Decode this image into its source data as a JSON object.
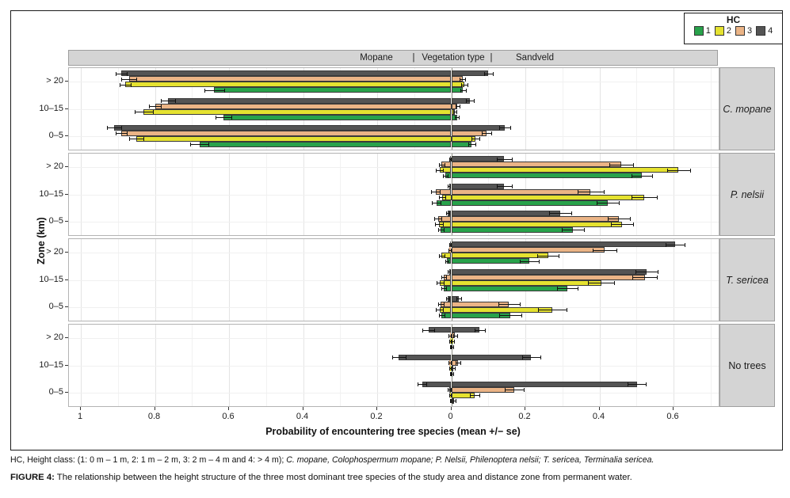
{
  "caption": {
    "line1_regular": "HC, Height class: (1: 0 m – 1 m, 2: 1 m – 2 m, 3: 2 m – 4 m and 4: > 4 m); ",
    "line1_italic": "C. mopane, Colophospermum mopane; P. Nelsii, Philenoptera nelsii; T. sericea, Terminalia sericea.",
    "line2_label": "FIGURE 4:",
    "line2_text": " The relationship between the height structure of the three most dominant tree species of the study area and distance zone from permanent water."
  },
  "chart_data": {
    "type": "bar",
    "orientation": "horizontal-diverging",
    "xlabel": "Probability of encountering  tree species (mean +/− se)",
    "ylabel": "Zone (km)",
    "strip": {
      "left": "Mopane",
      "center": "Vegetation type",
      "right": "Sandveld",
      "separator": "|"
    },
    "legend": {
      "title": "HC"
    },
    "height_classes": [
      {
        "id": "1",
        "color": "#28a24b"
      },
      {
        "id": "2",
        "color": "#e5e230"
      },
      {
        "id": "3",
        "color": "#ebb486"
      },
      {
        "id": "4",
        "color": "#545454"
      }
    ],
    "zones": [
      "> 20",
      "10–15",
      "0–5"
    ],
    "x_ticks": [
      {
        "label": "1",
        "v": 1.0,
        "side": "M"
      },
      {
        "label": "0.8",
        "v": 0.8,
        "side": "M"
      },
      {
        "label": "0.6",
        "v": 0.6,
        "side": "M"
      },
      {
        "label": "0.4",
        "v": 0.4,
        "side": "M"
      },
      {
        "label": "0.2",
        "v": 0.2,
        "side": "M"
      },
      {
        "label": "0",
        "v": 0.0,
        "side": "Z"
      },
      {
        "label": "0.2",
        "v": 0.2,
        "side": "S"
      },
      {
        "label": "0.4",
        "v": 0.4,
        "side": "S"
      },
      {
        "label": "0.6",
        "v": 0.6,
        "side": "S"
      }
    ],
    "xlim": {
      "mopane_max": 1.03,
      "sandveld_max": 0.72
    },
    "panels": [
      {
        "label": "C. mopane",
        "italic": true,
        "groups": [
          {
            "zone": "> 20",
            "bars": [
              {
                "hc": "4",
                "mopane": 0.89,
                "mopane_se": 0.015,
                "sandveld": 0.1,
                "sandveld_se": 0.012
              },
              {
                "hc": "3",
                "mopane": 0.87,
                "mopane_se": 0.02,
                "sandveld": 0.03,
                "sandveld_se": 0.008
              },
              {
                "hc": "2",
                "mopane": 0.88,
                "mopane_se": 0.015,
                "sandveld": 0.035,
                "sandveld_se": 0.008
              },
              {
                "hc": "1",
                "mopane": 0.64,
                "mopane_se": 0.027,
                "sandveld": 0.032,
                "sandveld_se": 0.008
              }
            ]
          },
          {
            "zone": "10–15",
            "bars": [
              {
                "hc": "4",
                "mopane": 0.765,
                "mopane_se": 0.02,
                "sandveld": 0.05,
                "sandveld_se": 0.01
              },
              {
                "hc": "3",
                "mopane": 0.8,
                "mopane_se": 0.015,
                "sandveld": 0.017,
                "sandveld_se": 0.006
              },
              {
                "hc": "2",
                "mopane": 0.83,
                "mopane_se": 0.025,
                "sandveld": 0.01,
                "sandveld_se": 0.004
              },
              {
                "hc": "1",
                "mopane": 0.615,
                "mopane_se": 0.022,
                "sandveld": 0.015,
                "sandveld_se": 0.005
              }
            ]
          },
          {
            "zone": "0–5",
            "bars": [
              {
                "hc": "4",
                "mopane": 0.91,
                "mopane_se": 0.02,
                "sandveld": 0.145,
                "sandveld_se": 0.015
              },
              {
                "hc": "3",
                "mopane": 0.89,
                "mopane_se": 0.015,
                "sandveld": 0.095,
                "sandveld_se": 0.012
              },
              {
                "hc": "2",
                "mopane": 0.85,
                "mopane_se": 0.02,
                "sandveld": 0.065,
                "sandveld_se": 0.01
              },
              {
                "hc": "1",
                "mopane": 0.68,
                "mopane_se": 0.025,
                "sandveld": 0.055,
                "sandveld_se": 0.01
              }
            ]
          }
        ]
      },
      {
        "label": "P. nelsii",
        "italic": true,
        "groups": [
          {
            "zone": "> 20",
            "bars": [
              {
                "hc": "4",
                "mopane": 0.004,
                "mopane_se": 0.002,
                "sandveld": 0.143,
                "sandveld_se": 0.02
              },
              {
                "hc": "3",
                "mopane": 0.026,
                "mopane_se": 0.008,
                "sandveld": 0.458,
                "sandveld_se": 0.032
              },
              {
                "hc": "2",
                "mopane": 0.032,
                "mopane_se": 0.01,
                "sandveld": 0.613,
                "sandveld_se": 0.031
              },
              {
                "hc": "1",
                "mopane": 0.016,
                "mopane_se": 0.006,
                "sandveld": 0.515,
                "sandveld_se": 0.028
              }
            ]
          },
          {
            "zone": "10–15",
            "bars": [
              {
                "hc": "4",
                "mopane": 0.006,
                "mopane_se": 0.003,
                "sandveld": 0.143,
                "sandveld_se": 0.02
              },
              {
                "hc": "3",
                "mopane": 0.042,
                "mopane_se": 0.012,
                "sandveld": 0.376,
                "sandveld_se": 0.035
              },
              {
                "hc": "2",
                "mopane": 0.025,
                "mopane_se": 0.008,
                "sandveld": 0.521,
                "sandveld_se": 0.034
              },
              {
                "hc": "1",
                "mopane": 0.04,
                "mopane_se": 0.012,
                "sandveld": 0.423,
                "sandveld_se": 0.03
              }
            ]
          },
          {
            "zone": "0–5",
            "bars": [
              {
                "hc": "4",
                "mopane": 0.01,
                "mopane_se": 0.004,
                "sandveld": 0.294,
                "sandveld_se": 0.03
              },
              {
                "hc": "3",
                "mopane": 0.036,
                "mopane_se": 0.01,
                "sandveld": 0.452,
                "sandveld_se": 0.03
              },
              {
                "hc": "2",
                "mopane": 0.033,
                "mopane_se": 0.01,
                "sandveld": 0.46,
                "sandveld_se": 0.03
              },
              {
                "hc": "1",
                "mopane": 0.028,
                "mopane_se": 0.008,
                "sandveld": 0.328,
                "sandveld_se": 0.03
              }
            ]
          }
        ]
      },
      {
        "label": "T. sericea",
        "italic": true,
        "groups": [
          {
            "zone": "> 20",
            "bars": [
              {
                "hc": "4",
                "mopane": 0.004,
                "mopane_se": 0.002,
                "sandveld": 0.604,
                "sandveld_se": 0.026
              },
              {
                "hc": "3",
                "mopane": 0.005,
                "mopane_se": 0.003,
                "sandveld": 0.414,
                "sandveld_se": 0.032
              },
              {
                "hc": "2",
                "mopane": 0.026,
                "mopane_se": 0.008,
                "sandveld": 0.261,
                "sandveld_se": 0.028
              },
              {
                "hc": "1",
                "mopane": 0.012,
                "mopane_se": 0.005,
                "sandveld": 0.211,
                "sandveld_se": 0.025
              }
            ]
          },
          {
            "zone": "10–15",
            "bars": [
              {
                "hc": "4",
                "mopane": 0.006,
                "mopane_se": 0.003,
                "sandveld": 0.527,
                "sandveld_se": 0.03
              },
              {
                "hc": "3",
                "mopane": 0.02,
                "mopane_se": 0.007,
                "sandveld": 0.522,
                "sandveld_se": 0.033
              },
              {
                "hc": "2",
                "mopane": 0.03,
                "mopane_se": 0.009,
                "sandveld": 0.405,
                "sandveld_se": 0.035
              },
              {
                "hc": "1",
                "mopane": 0.02,
                "mopane_se": 0.007,
                "sandveld": 0.313,
                "sandveld_se": 0.028
              }
            ]
          },
          {
            "zone": "0–5",
            "bars": [
              {
                "hc": "4",
                "mopane": 0.01,
                "mopane_se": 0.004,
                "sandveld": 0.02,
                "sandveld_se": 0.006
              },
              {
                "hc": "3",
                "mopane": 0.028,
                "mopane_se": 0.008,
                "sandveld": 0.156,
                "sandveld_se": 0.028
              },
              {
                "hc": "2",
                "mopane": 0.032,
                "mopane_se": 0.01,
                "sandveld": 0.273,
                "sandveld_se": 0.038
              },
              {
                "hc": "1",
                "mopane": 0.026,
                "mopane_se": 0.008,
                "sandveld": 0.16,
                "sandveld_se": 0.03
              }
            ]
          }
        ]
      },
      {
        "label": "No trees",
        "italic": false,
        "groups": [
          {
            "zone": "> 20",
            "bars": [
              {
                "hc": "4",
                "mopane": 0.062,
                "mopane_se": 0.016,
                "sandveld": 0.077,
                "sandveld_se": 0.014
              },
              {
                "hc": "3",
                "mopane": 0.004,
                "mopane_se": 0.003,
                "sandveld": 0.01,
                "sandveld_se": 0.005
              },
              {
                "hc": "2",
                "mopane": 0.003,
                "mopane_se": 0.002,
                "sandveld": 0.005,
                "sandveld_se": 0.003
              },
              {
                "hc": "1",
                "mopane": 0.002,
                "mopane_se": 0.001,
                "sandveld": 0.003,
                "sandveld_se": 0.002
              }
            ]
          },
          {
            "zone": "10–15",
            "bars": [
              {
                "hc": "4",
                "mopane": 0.142,
                "mopane_se": 0.018,
                "sandveld": 0.216,
                "sandveld_se": 0.024
              },
              {
                "hc": "3",
                "mopane": 0.005,
                "mopane_se": 0.003,
                "sandveld": 0.018,
                "sandveld_se": 0.007
              },
              {
                "hc": "2",
                "mopane": 0.003,
                "mopane_se": 0.002,
                "sandveld": 0.006,
                "sandveld_se": 0.003
              },
              {
                "hc": "1",
                "mopane": 0.002,
                "mopane_se": 0.001,
                "sandveld": 0.004,
                "sandveld_se": 0.002
              }
            ]
          },
          {
            "zone": "0–5",
            "bars": [
              {
                "hc": "4",
                "mopane": 0.079,
                "mopane_se": 0.012,
                "sandveld": 0.501,
                "sandveld_se": 0.025
              },
              {
                "hc": "3",
                "mopane": 0.006,
                "mopane_se": 0.004,
                "sandveld": 0.17,
                "sandveld_se": 0.025
              },
              {
                "hc": "2",
                "mopane": 0.003,
                "mopane_se": 0.002,
                "sandveld": 0.064,
                "sandveld_se": 0.013
              },
              {
                "hc": "1",
                "mopane": 0.002,
                "mopane_se": 0.001,
                "sandveld": 0.008,
                "sandveld_se": 0.004
              }
            ]
          }
        ]
      }
    ]
  }
}
